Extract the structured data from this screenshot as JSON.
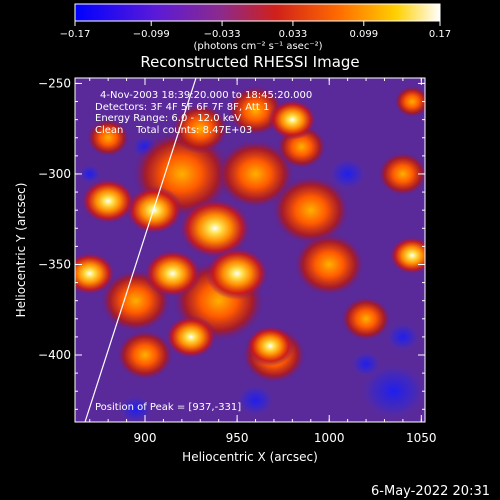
{
  "colorbar": {
    "ticks": [
      "-0.17",
      "-0.099",
      "-0.033",
      "0.033",
      "0.099",
      "0.17"
    ],
    "units": "(photons cm⁻² s⁻¹ asec⁻²)"
  },
  "title": "Reconstructed RHESSI Image",
  "annotations": {
    "time": "4-Nov-2003 18:39:20.000 to 18:45:20.000",
    "detectors": "Detectors: 3F 4F 5F 6F 7F 8F, Att 1",
    "energy": "Energy Range: 6.0 - 12.0 keV",
    "clean": "Clean    Total counts: 8.47E+03",
    "peak": "Position of Peak = [937,-331]"
  },
  "chart_data": {
    "type": "heatmap",
    "title": "Reconstructed RHESSI Image",
    "xlabel": "Heliocentric X (arcsec)",
    "ylabel": "Heliocentric Y (arcsec)",
    "xlim": [
      862,
      1052
    ],
    "ylim": [
      -437,
      -247
    ],
    "x_ticks": [
      900,
      950,
      1000,
      1050
    ],
    "y_ticks": [
      -400,
      -350,
      -300,
      -250
    ],
    "x_tick_labels": [
      "900",
      "950",
      "1000",
      "1050"
    ],
    "y_tick_labels": [
      "−400",
      "−350",
      "−300",
      "−250"
    ],
    "colorbar_range": [
      -0.17,
      0.17
    ],
    "colormap": "blue-purple-red-yellow-white",
    "peak": [
      937,
      -331
    ],
    "hot_spots": [
      {
        "x": 938,
        "y": -330,
        "value": 0.17
      },
      {
        "x": 905,
        "y": -320,
        "value": 0.12
      },
      {
        "x": 880,
        "y": -315,
        "value": 0.11
      },
      {
        "x": 950,
        "y": -355,
        "value": 0.14
      },
      {
        "x": 915,
        "y": -355,
        "value": 0.12
      },
      {
        "x": 925,
        "y": -390,
        "value": 0.1
      },
      {
        "x": 980,
        "y": -270,
        "value": 0.09
      },
      {
        "x": 968,
        "y": -395,
        "value": 0.09
      },
      {
        "x": 1045,
        "y": -345,
        "value": 0.08
      },
      {
        "x": 870,
        "y": -355,
        "value": 0.1
      }
    ]
  },
  "footer": {
    "date": "6-May-2022 20:31"
  }
}
